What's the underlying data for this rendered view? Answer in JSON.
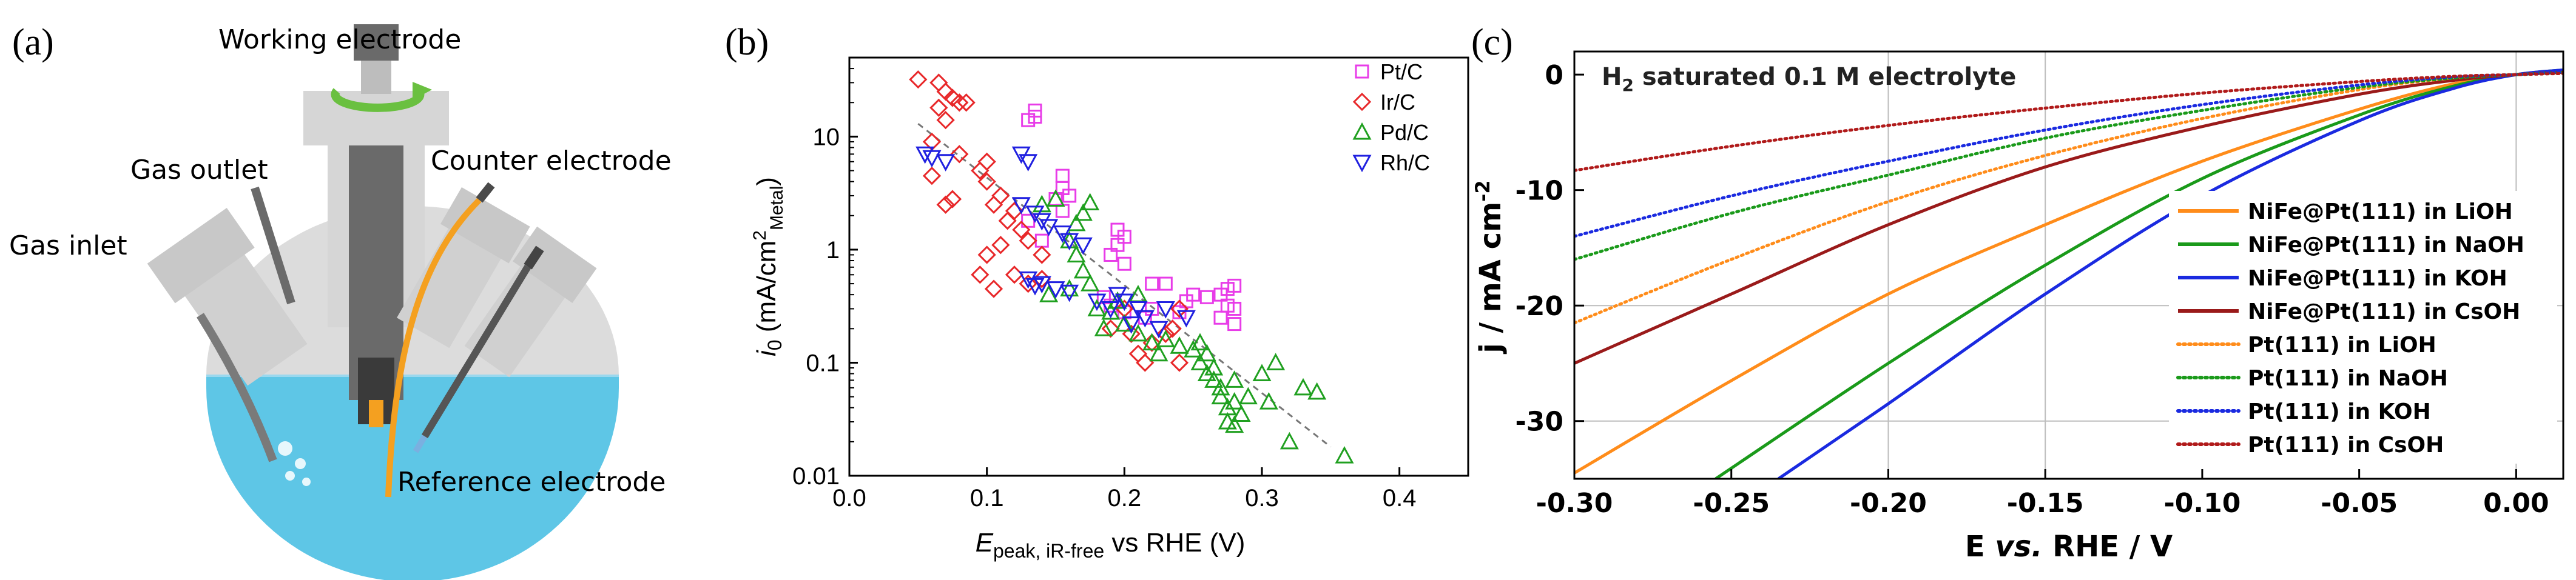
{
  "panels": {
    "a": {
      "label": "(a)",
      "annotations": {
        "working_electrode": "Working electrode",
        "gas_outlet": "Gas outlet",
        "counter_electrode": "Counter electrode",
        "gas_inlet": "Gas inlet",
        "reference_electrode": "Reference electrode"
      }
    },
    "b": {
      "label": "(b)"
    },
    "c": {
      "label": "(c)"
    }
  },
  "chart_data": [
    {
      "panel": "b",
      "type": "scatter",
      "title": "",
      "xlabel": {
        "main": "E",
        "sub": "peak, iR-free",
        "rest": " vs RHE (V)"
      },
      "ylabel": {
        "main": "i",
        "sub": "0",
        "rest": " (mA/cm",
        "sup": "2",
        "sub2": "Metal",
        "close": ")"
      },
      "xlim": [
        0.0,
        0.45
      ],
      "ylim": [
        0.01,
        50
      ],
      "yscale": "log",
      "xticks": [
        "0.0",
        "0.1",
        "0.2",
        "0.3",
        "0.4"
      ],
      "yticks": [
        "10",
        "1",
        "0.1",
        "0.01"
      ],
      "legend_position": "top-right",
      "series": [
        {
          "name": "Pt/C",
          "color": "#e83ce8",
          "marker": "square",
          "points": [
            [
              0.135,
              17
            ],
            [
              0.13,
              14
            ],
            [
              0.135,
              15
            ],
            [
              0.155,
              4.5
            ],
            [
              0.155,
              3.5
            ],
            [
              0.16,
              3
            ],
            [
              0.15,
              2.8
            ],
            [
              0.155,
              2.2
            ],
            [
              0.195,
              1.5
            ],
            [
              0.2,
              1.3
            ],
            [
              0.195,
              1.1
            ],
            [
              0.19,
              0.9
            ],
            [
              0.2,
              0.75
            ],
            [
              0.22,
              0.5
            ],
            [
              0.23,
              0.5
            ],
            [
              0.245,
              0.35
            ],
            [
              0.25,
              0.4
            ],
            [
              0.26,
              0.38
            ],
            [
              0.27,
              0.4
            ],
            [
              0.275,
              0.45
            ],
            [
              0.28,
              0.48
            ],
            [
              0.275,
              0.32
            ],
            [
              0.28,
              0.3
            ],
            [
              0.27,
              0.25
            ],
            [
              0.28,
              0.22
            ],
            [
              0.185,
              0.38
            ],
            [
              0.19,
              0.32
            ],
            [
              0.2,
              0.28
            ],
            [
              0.22,
              0.3
            ],
            [
              0.215,
              0.25
            ],
            [
              0.24,
              0.28
            ],
            [
              0.13,
              1.8
            ],
            [
              0.14,
              1.2
            ]
          ]
        },
        {
          "name": "Ir/C",
          "color": "#e8282a",
          "marker": "diamond",
          "points": [
            [
              0.05,
              32
            ],
            [
              0.065,
              30
            ],
            [
              0.07,
              25
            ],
            [
              0.075,
              22
            ],
            [
              0.08,
              20
            ],
            [
              0.085,
              20
            ],
            [
              0.065,
              18
            ],
            [
              0.07,
              14
            ],
            [
              0.06,
              9
            ],
            [
              0.06,
              4.5
            ],
            [
              0.08,
              7
            ],
            [
              0.095,
              5
            ],
            [
              0.1,
              6
            ],
            [
              0.1,
              4
            ],
            [
              0.11,
              3
            ],
            [
              0.105,
              2.5
            ],
            [
              0.12,
              2.2
            ],
            [
              0.115,
              1.8
            ],
            [
              0.125,
              1.5
            ],
            [
              0.13,
              1.2
            ],
            [
              0.11,
              1.1
            ],
            [
              0.1,
              0.9
            ],
            [
              0.095,
              0.6
            ],
            [
              0.105,
              0.45
            ],
            [
              0.14,
              0.9
            ],
            [
              0.14,
              0.55
            ],
            [
              0.13,
              0.5
            ],
            [
              0.12,
              0.6
            ],
            [
              0.075,
              2.8
            ],
            [
              0.07,
              2.5
            ],
            [
              0.205,
              0.18
            ],
            [
              0.21,
              0.12
            ],
            [
              0.215,
              0.1
            ],
            [
              0.22,
              0.15
            ],
            [
              0.235,
              0.2
            ],
            [
              0.24,
              0.1
            ],
            [
              0.24,
              0.3
            ],
            [
              0.23,
              0.18
            ],
            [
              0.19,
              0.2
            ],
            [
              0.2,
              0.3
            ]
          ]
        },
        {
          "name": "Pd/C",
          "color": "#20a020",
          "marker": "triangle-up",
          "points": [
            [
              0.14,
              2.5
            ],
            [
              0.15,
              2.8
            ],
            [
              0.175,
              2.6
            ],
            [
              0.17,
              2.1
            ],
            [
              0.165,
              1.7
            ],
            [
              0.16,
              1.2
            ],
            [
              0.165,
              0.9
            ],
            [
              0.17,
              0.65
            ],
            [
              0.175,
              0.5
            ],
            [
              0.16,
              0.45
            ],
            [
              0.145,
              0.4
            ],
            [
              0.18,
              0.3
            ],
            [
              0.19,
              0.28
            ],
            [
              0.2,
              0.22
            ],
            [
              0.185,
              0.2
            ],
            [
              0.21,
              0.18
            ],
            [
              0.22,
              0.15
            ],
            [
              0.225,
              0.12
            ],
            [
              0.23,
              0.16
            ],
            [
              0.24,
              0.14
            ],
            [
              0.195,
              0.35
            ],
            [
              0.21,
              0.4
            ],
            [
              0.25,
              0.13
            ],
            [
              0.255,
              0.1
            ],
            [
              0.26,
              0.08
            ],
            [
              0.26,
              0.12
            ],
            [
              0.265,
              0.07
            ],
            [
              0.27,
              0.06
            ],
            [
              0.27,
              0.05
            ],
            [
              0.275,
              0.04
            ],
            [
              0.28,
              0.045
            ],
            [
              0.285,
              0.035
            ],
            [
              0.275,
              0.03
            ],
            [
              0.28,
              0.028
            ],
            [
              0.29,
              0.05
            ],
            [
              0.3,
              0.08
            ],
            [
              0.31,
              0.1
            ],
            [
              0.305,
              0.045
            ],
            [
              0.33,
              0.06
            ],
            [
              0.34,
              0.055
            ],
            [
              0.36,
              0.015
            ],
            [
              0.32,
              0.02
            ],
            [
              0.28,
              0.07
            ],
            [
              0.265,
              0.09
            ],
            [
              0.255,
              0.15
            ]
          ]
        },
        {
          "name": "Rh/C",
          "color": "#2020e0",
          "marker": "triangle-down",
          "points": [
            [
              0.055,
              7
            ],
            [
              0.06,
              6.5
            ],
            [
              0.07,
              6
            ],
            [
              0.125,
              7
            ],
            [
              0.13,
              6
            ],
            [
              0.125,
              2.5
            ],
            [
              0.135,
              2.1
            ],
            [
              0.14,
              1.8
            ],
            [
              0.145,
              1.6
            ],
            [
              0.155,
              1.4
            ],
            [
              0.16,
              1.2
            ],
            [
              0.17,
              1.1
            ],
            [
              0.13,
              0.55
            ],
            [
              0.135,
              0.48
            ],
            [
              0.14,
              0.5
            ],
            [
              0.15,
              0.45
            ],
            [
              0.16,
              0.42
            ],
            [
              0.195,
              0.4
            ],
            [
              0.2,
              0.35
            ],
            [
              0.21,
              0.3
            ],
            [
              0.215,
              0.25
            ],
            [
              0.225,
              0.2
            ],
            [
              0.245,
              0.25
            ],
            [
              0.23,
              0.3
            ],
            [
              0.19,
              0.3
            ],
            [
              0.18,
              0.35
            ],
            [
              0.205,
              0.22
            ]
          ]
        }
      ],
      "trendline": {
        "style": "dashed",
        "color": "#777777",
        "points": [
          [
            0.05,
            13
          ],
          [
            0.35,
            0.018
          ]
        ]
      }
    },
    {
      "panel": "c",
      "type": "line",
      "title": "",
      "annotation": {
        "prefix": "H",
        "sub": "2",
        "rest": " saturated 0.1 M electrolyte"
      },
      "xlabel": {
        "main": "E ",
        "italic": "vs.",
        "rest": " RHE / V"
      },
      "ylabel": {
        "main": "j / mA cm",
        "sup": "-2"
      },
      "xlim": [
        -0.3,
        0.015
      ],
      "ylim": [
        -35,
        2
      ],
      "xticks": [
        "-0.30",
        "-0.25",
        "-0.20",
        "-0.15",
        "-0.10",
        "-0.05",
        "0.00"
      ],
      "yticks": [
        "0",
        "-10",
        "-20",
        "-30"
      ],
      "grid": true,
      "legend_position": "right",
      "series": [
        {
          "name": "NiFe@Pt(111) in LiOH",
          "color": "#ff8c1a",
          "style": "solid",
          "points": [
            [
              -0.3,
              -34.5
            ],
            [
              -0.25,
              -26.5
            ],
            [
              -0.2,
              -19
            ],
            [
              -0.15,
              -13
            ],
            [
              -0.1,
              -7.5
            ],
            [
              -0.05,
              -3
            ],
            [
              -0.02,
              -0.8
            ],
            [
              0.0,
              0
            ],
            [
              0.015,
              0.3
            ]
          ]
        },
        {
          "name": "NiFe@Pt(111) in NaOH",
          "color": "#1a9a1a",
          "style": "solid",
          "points": [
            [
              -0.255,
              -35
            ],
            [
              -0.2,
              -25
            ],
            [
              -0.15,
              -16.5
            ],
            [
              -0.1,
              -9
            ],
            [
              -0.05,
              -3.5
            ],
            [
              -0.02,
              -1
            ],
            [
              0.0,
              0
            ],
            [
              0.015,
              0.4
            ]
          ]
        },
        {
          "name": "NiFe@Pt(111) in KOH",
          "color": "#1a2ae0",
          "style": "solid",
          "points": [
            [
              -0.235,
              -35
            ],
            [
              -0.2,
              -28.5
            ],
            [
              -0.15,
              -19
            ],
            [
              -0.1,
              -10.5
            ],
            [
              -0.05,
              -4
            ],
            [
              -0.02,
              -1.2
            ],
            [
              0.0,
              0
            ],
            [
              0.015,
              0.4
            ]
          ]
        },
        {
          "name": "NiFe@Pt(111) in CsOH",
          "color": "#9a1a1a",
          "style": "solid",
          "points": [
            [
              -0.3,
              -25
            ],
            [
              -0.25,
              -19
            ],
            [
              -0.2,
              -13
            ],
            [
              -0.15,
              -8
            ],
            [
              -0.1,
              -4.5
            ],
            [
              -0.05,
              -1.7
            ],
            [
              -0.02,
              -0.5
            ],
            [
              0.0,
              0
            ],
            [
              0.015,
              0.2
            ]
          ]
        },
        {
          "name": "Pt(111) in LiOH",
          "color": "#ff8c1a",
          "style": "dotted",
          "points": [
            [
              -0.3,
              -21.5
            ],
            [
              -0.25,
              -16
            ],
            [
              -0.2,
              -11
            ],
            [
              -0.15,
              -7
            ],
            [
              -0.1,
              -3.8
            ],
            [
              -0.05,
              -1.3
            ],
            [
              -0.02,
              -0.3
            ],
            [
              0.0,
              0
            ],
            [
              0.015,
              0.2
            ]
          ]
        },
        {
          "name": "Pt(111) in NaOH",
          "color": "#1a9a1a",
          "style": "dotted",
          "points": [
            [
              -0.3,
              -16
            ],
            [
              -0.25,
              -12
            ],
            [
              -0.2,
              -8.7
            ],
            [
              -0.15,
              -5.5
            ],
            [
              -0.1,
              -3.1
            ],
            [
              -0.05,
              -1.1
            ],
            [
              -0.02,
              -0.3
            ],
            [
              0.0,
              0
            ],
            [
              0.015,
              0.2
            ]
          ]
        },
        {
          "name": "Pt(111) in KOH",
          "color": "#1a2ae0",
          "style": "dotted",
          "points": [
            [
              -0.3,
              -14
            ],
            [
              -0.25,
              -10.5
            ],
            [
              -0.2,
              -7.5
            ],
            [
              -0.15,
              -4.8
            ],
            [
              -0.1,
              -2.6
            ],
            [
              -0.05,
              -0.9
            ],
            [
              -0.02,
              -0.2
            ],
            [
              0.0,
              0
            ],
            [
              0.015,
              0.2
            ]
          ]
        },
        {
          "name": "Pt(111) in CsOH",
          "color": "#b01a1a",
          "style": "dotted",
          "points": [
            [
              -0.3,
              -8.3
            ],
            [
              -0.25,
              -6.2
            ],
            [
              -0.2,
              -4.4
            ],
            [
              -0.15,
              -2.9
            ],
            [
              -0.1,
              -1.6
            ],
            [
              -0.05,
              -0.6
            ],
            [
              -0.02,
              -0.15
            ],
            [
              0.0,
              0
            ],
            [
              0.015,
              0.1
            ]
          ]
        }
      ]
    }
  ],
  "colors": {
    "glass": "#dcdcdc",
    "electrolyte": "#5ec6e6",
    "dark_metal": "#6a6a6a",
    "orange": "#f4a020",
    "green_arrow": "#6ac040"
  }
}
